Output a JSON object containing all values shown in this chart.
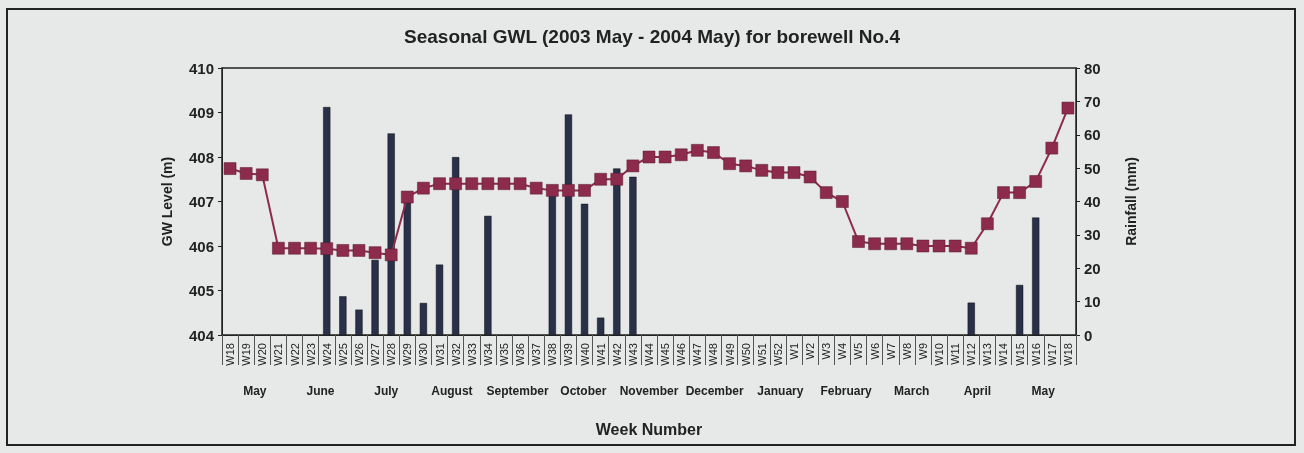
{
  "chart_data": {
    "type": "line",
    "title": "Seasonal GWL (2003 May - 2004 May) for borewell No.4",
    "xlabel": "Week Number",
    "ylabel": "GW Level (m)",
    "y2label": "Rainfall (mm)",
    "categories": [
      "W18",
      "W19",
      "W20",
      "W21",
      "W22",
      "W23",
      "W24",
      "W25",
      "W26",
      "W27",
      "W28",
      "W29",
      "W30",
      "W31",
      "W32",
      "W33",
      "W34",
      "W35",
      "W36",
      "W37",
      "W38",
      "W39",
      "W40",
      "W41",
      "W42",
      "W43",
      "W44",
      "W45",
      "W46",
      "W47",
      "W48",
      "W49",
      "W50",
      "W51",
      "W52",
      "W1",
      "W2",
      "W3",
      "W4",
      "W5",
      "W6",
      "W7",
      "W8",
      "W9",
      "W10",
      "W11",
      "W12",
      "W13",
      "W14",
      "W15",
      "W16",
      "W17",
      "W18"
    ],
    "series": [
      {
        "type": "bar",
        "axis": "y2",
        "color": "#28304a",
        "values": [
          null,
          null,
          null,
          null,
          null,
          null,
          68.3,
          11.6,
          7.6,
          22.5,
          60.4,
          39.6,
          9.6,
          21.1,
          53.3,
          null,
          35.7,
          null,
          null,
          null,
          42,
          66.1,
          39.3,
          5.2,
          49.9,
          47.4,
          null,
          null,
          null,
          null,
          null,
          null,
          null,
          null,
          null,
          null,
          null,
          null,
          null,
          null,
          null,
          null,
          null,
          null,
          null,
          null,
          9.7,
          null,
          null,
          15,
          35.2,
          null,
          null
        ]
      },
      {
        "color": "#8c2b4c",
        "values": [
          407.74,
          407.63,
          407.6,
          405.95,
          405.95,
          405.95,
          405.94,
          405.9,
          405.9,
          405.85,
          405.8,
          407.1,
          407.3,
          407.4,
          407.4,
          407.4,
          407.4,
          407.4,
          407.4,
          407.3,
          407.25,
          407.25,
          407.25,
          407.5,
          407.5,
          407.8,
          408,
          408,
          408.05,
          408.15,
          408.1,
          407.85,
          407.8,
          407.7,
          407.65,
          407.65,
          407.55,
          407.2,
          407,
          406.1,
          406.05,
          406.05,
          406.05,
          406,
          406,
          406,
          405.95,
          406.5,
          407.2,
          407.2,
          407.45,
          408.2,
          409.1
        ]
      }
    ],
    "ylim": [
      404,
      410
    ],
    "yticks": [
      404,
      405,
      406,
      407,
      408,
      409,
      410
    ],
    "y2lim": [
      0,
      80
    ],
    "y2ticks": [
      0,
      10,
      20,
      30,
      40,
      50,
      60,
      70,
      80
    ],
    "marker": "square",
    "line_style": "solid",
    "grid": false,
    "annotations": [
      "May",
      "June",
      "July",
      "August",
      "September",
      "October",
      "November",
      "December",
      "January",
      "February",
      "March",
      "April",
      "May"
    ]
  }
}
